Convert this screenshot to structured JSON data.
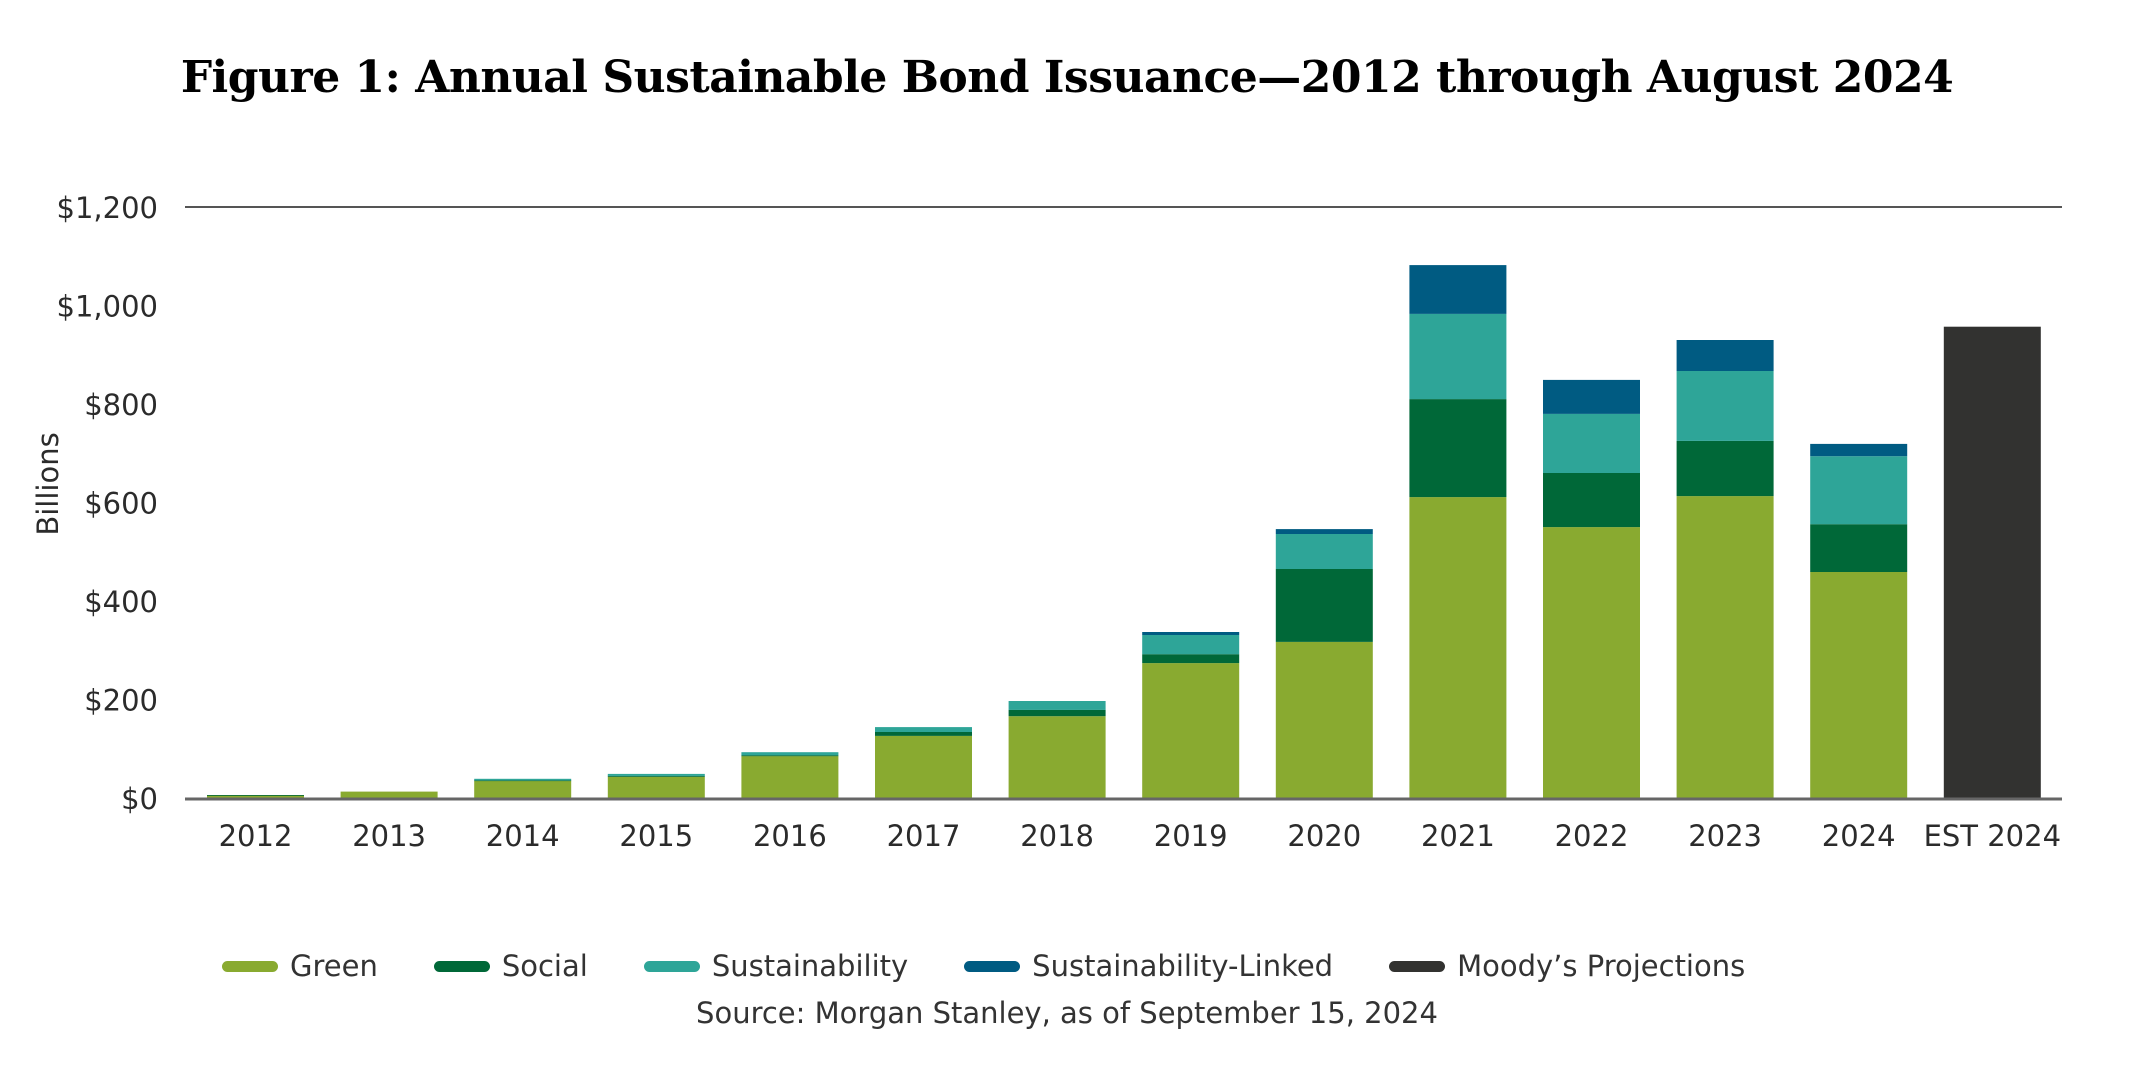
{
  "chart_data": {
    "type": "bar",
    "stacked": true,
    "title": "Figure 1: Annual Sustainable Bond Issuance—2012 through August 2024",
    "xlabel": "",
    "ylabel": "Billions",
    "ylim": [
      0,
      1200
    ],
    "yticks": [
      0,
      200,
      400,
      600,
      800,
      1000,
      1200
    ],
    "ytick_labels": [
      "$0",
      "$200",
      "$400",
      "$600",
      "$800",
      "$1,000",
      "$1,200"
    ],
    "grid": "top line only",
    "categories": [
      "2012",
      "2013",
      "2014",
      "2015",
      "2016",
      "2017",
      "2018",
      "2019",
      "2020",
      "2021",
      "2022",
      "2023",
      "2024",
      "EST 2024"
    ],
    "series": [
      {
        "name": "Green",
        "color": "#89aa30",
        "values": [
          5,
          13,
          35,
          43,
          85,
          126,
          166,
          274,
          317,
          611,
          550,
          613,
          459,
          0
        ]
      },
      {
        "name": "Social",
        "color": "#006838",
        "values": [
          1,
          0,
          1,
          2,
          2,
          8,
          13,
          18,
          148,
          199,
          110,
          112,
          97,
          0
        ]
      },
      {
        "name": "Sustainability",
        "color": "#2ea598",
        "values": [
          0,
          0,
          3,
          4,
          6,
          10,
          18,
          39,
          71,
          173,
          120,
          142,
          138,
          0
        ]
      },
      {
        "name": "Sustainability-Linked",
        "color": "#005b82",
        "values": [
          0,
          0,
          0,
          0,
          0,
          0,
          0,
          6,
          10,
          99,
          69,
          63,
          25,
          0
        ]
      },
      {
        "name": "Moody’s Projections",
        "color": "#323230",
        "values": [
          0,
          0,
          0,
          0,
          0,
          0,
          0,
          0,
          0,
          0,
          0,
          0,
          0,
          957
        ]
      }
    ],
    "legend_position": "bottom",
    "source": "Source: Morgan Stanley, as of September 15, 2024"
  }
}
